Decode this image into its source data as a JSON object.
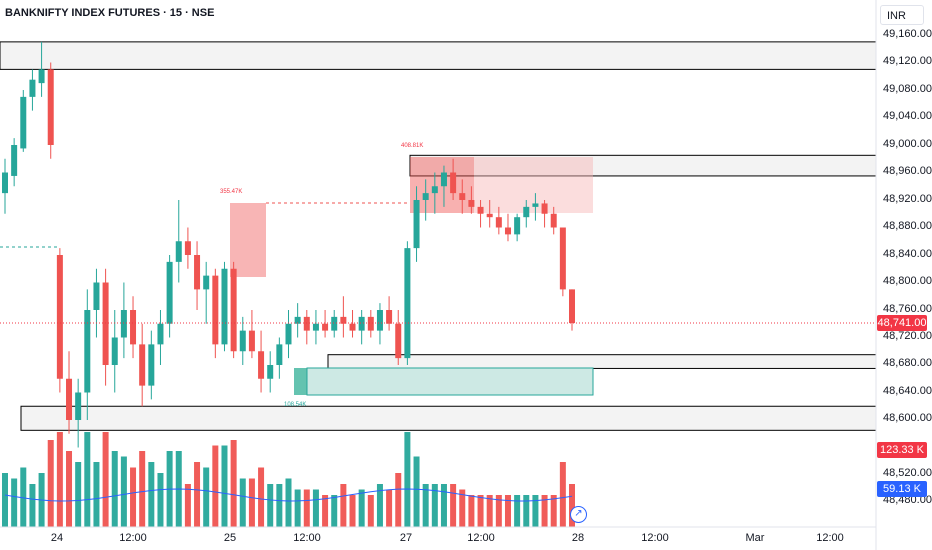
{
  "header": {
    "title": "BANKNIFTY INDEX FUTURES · 15 · NSE",
    "currency_button": "INR"
  },
  "y_axis": {
    "ticks": [
      "49,160.00",
      "49,120.00",
      "49,080.00",
      "49,040.00",
      "49,000.00",
      "48,960.00",
      "48,920.00",
      "48,880.00",
      "48,840.00",
      "48,800.00",
      "48,760.00",
      "48,720.00",
      "48,680.00",
      "48,640.00",
      "48,600.00",
      "48,520.00",
      "48,480.00"
    ]
  },
  "x_axis": {
    "ticks": [
      "24",
      "12:00",
      "25",
      "12:00",
      "27",
      "12:00",
      "28",
      "12:00",
      "Mar",
      "12:00"
    ]
  },
  "badges": {
    "price": {
      "text": "48,741.00",
      "color": "#f23645"
    },
    "volume": {
      "text": "123.33 K",
      "color": "#f23645"
    },
    "volume_ma": {
      "text": "59.13 K",
      "color": "#2962ff"
    }
  },
  "annotations": {
    "vol1": "355.47K",
    "vol2": "408.81K",
    "vol3": "108.54K"
  },
  "colors": {
    "up": "#26a69a",
    "down": "#ef5350",
    "ma_line": "#2962ff"
  },
  "chart_data": {
    "type": "candlestick",
    "title": "BANKNIFTY INDEX FUTURES · 15 · NSE",
    "last_price": 48741.0,
    "volume_last": "123.33 K",
    "volume_ma": "59.13 K",
    "zones": [
      {
        "from": 49110,
        "to": 49150
      },
      {
        "from": 48955,
        "to": 48985
      },
      {
        "from": 48675,
        "to": 48695
      },
      {
        "from": 48585,
        "to": 48620
      }
    ],
    "candles": [
      [
        48930,
        48980,
        48900,
        48960
      ],
      [
        48955,
        49010,
        48940,
        49000
      ],
      [
        48995,
        49080,
        48990,
        49070
      ],
      [
        49070,
        49110,
        49050,
        49095
      ],
      [
        49090,
        49150,
        49070,
        49110
      ],
      [
        49110,
        49120,
        48980,
        49000
      ],
      [
        48840,
        48850,
        48640,
        48660
      ],
      [
        48660,
        48700,
        48580,
        48600
      ],
      [
        48600,
        48660,
        48560,
        48640
      ],
      [
        48640,
        48790,
        48600,
        48760
      ],
      [
        48760,
        48820,
        48720,
        48800
      ],
      [
        48800,
        48820,
        48650,
        48680
      ],
      [
        48680,
        48760,
        48640,
        48720
      ],
      [
        48720,
        48800,
        48690,
        48760
      ],
      [
        48760,
        48780,
        48690,
        48710
      ],
      [
        48710,
        48740,
        48620,
        48650
      ],
      [
        48650,
        48730,
        48630,
        48710
      ],
      [
        48710,
        48760,
        48680,
        48740
      ],
      [
        48740,
        48840,
        48720,
        48830
      ],
      [
        48830,
        48920,
        48800,
        48860
      ],
      [
        48860,
        48880,
        48820,
        48840
      ],
      [
        48840,
        48860,
        48760,
        48790
      ],
      [
        48790,
        48830,
        48740,
        48810
      ],
      [
        48810,
        48820,
        48690,
        48710
      ],
      [
        48710,
        48830,
        48700,
        48820
      ],
      [
        48820,
        48830,
        48690,
        48700
      ],
      [
        48700,
        48750,
        48680,
        48730
      ],
      [
        48730,
        48760,
        48690,
        48700
      ],
      [
        48700,
        48730,
        48640,
        48660
      ],
      [
        48660,
        48700,
        48640,
        48680
      ],
      [
        48680,
        48720,
        48660,
        48710
      ],
      [
        48710,
        48760,
        48690,
        48740
      ],
      [
        48740,
        48770,
        48720,
        48750
      ],
      [
        48750,
        48760,
        48710,
        48730
      ],
      [
        48730,
        48760,
        48710,
        48740
      ],
      [
        48740,
        48760,
        48720,
        48730
      ],
      [
        48730,
        48760,
        48720,
        48750
      ],
      [
        48750,
        48780,
        48720,
        48740
      ],
      [
        48740,
        48760,
        48720,
        48730
      ],
      [
        48730,
        48760,
        48710,
        48750
      ],
      [
        48750,
        48760,
        48720,
        48730
      ],
      [
        48730,
        48770,
        48710,
        48760
      ],
      [
        48760,
        48780,
        48730,
        48740
      ],
      [
        48740,
        48760,
        48680,
        48690
      ],
      [
        48690,
        48860,
        48680,
        48850
      ],
      [
        48850,
        48940,
        48830,
        48920
      ],
      [
        48920,
        48950,
        48890,
        48930
      ],
      [
        48930,
        48960,
        48900,
        48940
      ],
      [
        48940,
        48970,
        48910,
        48960
      ],
      [
        48960,
        48980,
        48920,
        48930
      ],
      [
        48930,
        48950,
        48900,
        48920
      ],
      [
        48920,
        48940,
        48900,
        48910
      ],
      [
        48910,
        48920,
        48880,
        48900
      ],
      [
        48900,
        48920,
        48880,
        48895
      ],
      [
        48895,
        48910,
        48870,
        48880
      ],
      [
        48880,
        48900,
        48860,
        48870
      ],
      [
        48870,
        48900,
        48860,
        48895
      ],
      [
        48895,
        48920,
        48880,
        48910
      ],
      [
        48910,
        48930,
        48890,
        48915
      ],
      [
        48915,
        48920,
        48880,
        48900
      ],
      [
        48900,
        48910,
        48870,
        48880
      ],
      [
        48880,
        48880,
        48780,
        48790
      ],
      [
        48790,
        48790,
        48730,
        48741
      ]
    ]
  }
}
